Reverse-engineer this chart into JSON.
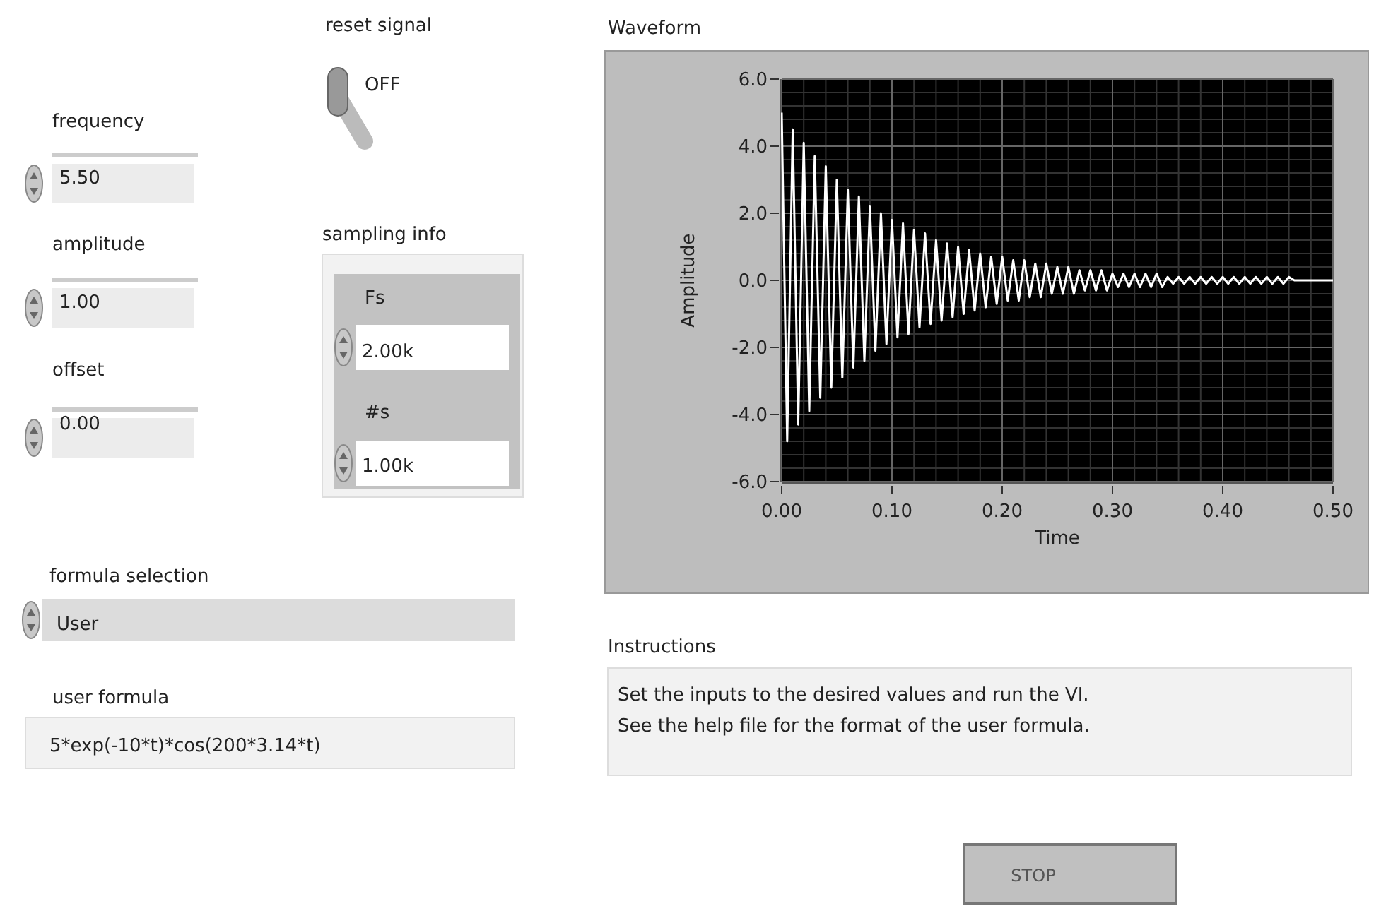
{
  "chart_data": [
    {
      "type": "line",
      "title": "Waveform",
      "xlabel": "Time",
      "ylabel": "Amplitude",
      "x": [
        0,
        0.005,
        0.01,
        0.015,
        0.02,
        0.025,
        0.03,
        0.035,
        0.04,
        0.045,
        0.05,
        0.055,
        0.06,
        0.065,
        0.07,
        0.075,
        0.08,
        0.085,
        0.09,
        0.095,
        0.1,
        0.105,
        0.11,
        0.115,
        0.12,
        0.125,
        0.13,
        0.135,
        0.14,
        0.145,
        0.15,
        0.155,
        0.16,
        0.165,
        0.17,
        0.175,
        0.18,
        0.185,
        0.19,
        0.195,
        0.2,
        0.205,
        0.21,
        0.215,
        0.22,
        0.225,
        0.23,
        0.235,
        0.24,
        0.245,
        0.25,
        0.255,
        0.26,
        0.265,
        0.27,
        0.275,
        0.28,
        0.285,
        0.29,
        0.295,
        0.3,
        0.305,
        0.31,
        0.315,
        0.32,
        0.325,
        0.33,
        0.335,
        0.34,
        0.345,
        0.35,
        0.355,
        0.36,
        0.365,
        0.37,
        0.375,
        0.38,
        0.385,
        0.39,
        0.395,
        0.4,
        0.405,
        0.41,
        0.415,
        0.42,
        0.425,
        0.43,
        0.435,
        0.44,
        0.445,
        0.45,
        0.455,
        0.46,
        0.465,
        0.47,
        0.475,
        0.48,
        0.485,
        0.49,
        0.495,
        0.5
      ],
      "series": [
        {
          "color": "#ffffff",
          "values": [
            5.0,
            -4.8,
            4.5,
            -4.3,
            4.1,
            -3.9,
            3.7,
            -3.5,
            3.4,
            -3.2,
            3.0,
            -2.9,
            2.7,
            -2.6,
            2.5,
            -2.4,
            2.2,
            -2.1,
            2.0,
            -1.9,
            1.8,
            -1.7,
            1.7,
            -1.6,
            1.5,
            -1.4,
            1.4,
            -1.3,
            1.2,
            -1.2,
            1.1,
            -1.1,
            1.0,
            -1.0,
            0.9,
            -0.9,
            0.8,
            -0.8,
            0.7,
            -0.7,
            0.7,
            -0.6,
            0.6,
            -0.6,
            0.6,
            -0.5,
            0.5,
            -0.5,
            0.5,
            -0.4,
            0.4,
            -0.4,
            0.4,
            -0.4,
            0.3,
            -0.3,
            0.3,
            -0.3,
            0.3,
            -0.3,
            0.2,
            -0.2,
            0.2,
            -0.2,
            0.2,
            -0.2,
            0.2,
            -0.2,
            0.2,
            -0.2,
            0.1,
            -0.1,
            0.1,
            -0.1,
            0.1,
            -0.1,
            0.1,
            -0.1,
            0.1,
            -0.1,
            0.1,
            -0.1,
            0.1,
            -0.1,
            0.1,
            -0.1,
            0.1,
            -0.1,
            0.1,
            -0.1,
            0.1,
            -0.1,
            0.1,
            0.0,
            0.0,
            0.0,
            0.0,
            0.0,
            0.0,
            0.0,
            0.0
          ]
        }
      ],
      "xlim": [
        0,
        0.5
      ],
      "ylim": [
        -6,
        6
      ],
      "xticks": [
        {
          "value": 0,
          "label": "0.00"
        },
        {
          "value": 0.1,
          "label": "0.10"
        },
        {
          "value": 0.2,
          "label": "0.20"
        },
        {
          "value": 0.3,
          "label": "0.30"
        },
        {
          "value": 0.4,
          "label": "0.40"
        },
        {
          "value": 0.5,
          "label": "0.50"
        }
      ],
      "yticks": [
        {
          "value": -6,
          "label": "-6.0"
        },
        {
          "value": -4,
          "label": "-4.0"
        },
        {
          "value": -2,
          "label": "-2.0"
        },
        {
          "value": 0,
          "label": "0.0"
        },
        {
          "value": 2,
          "label": "2.0"
        },
        {
          "value": 4,
          "label": "4.0"
        },
        {
          "value": 6,
          "label": "6.0"
        }
      ],
      "grid": true
    },
    {
      "type": "other",
      "annotations": [
        "reset signal",
        "OFF",
        "frequency",
        "5.50",
        "amplitude",
        "1.00",
        "offset",
        "0.00",
        "sampling info",
        "Fs",
        "2.00k",
        "#s",
        "1.00k",
        "formula selection",
        "User",
        "user formula",
        "5*exp(-10*t)*cos(200*3.14*t)",
        "Instructions",
        "Set the inputs to the desired values and run the VI.",
        "See the help file for the format of the user formula.",
        "STOP"
      ]
    }
  ]
}
